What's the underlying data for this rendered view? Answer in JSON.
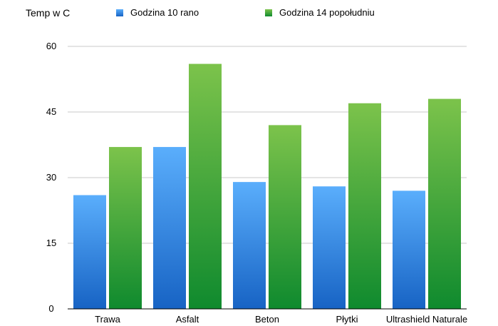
{
  "chart_data": {
    "type": "bar",
    "ylabel": "Temp w C",
    "categories": [
      "Trawa",
      "Asfalt",
      "Beton",
      "Płytki",
      "Ultrashield Naturale"
    ],
    "series": [
      {
        "name": "Godzina 10 rano",
        "values": [
          26,
          37,
          29,
          28,
          27
        ],
        "color_top": "#5aaefc",
        "color_bottom": "#1763c4"
      },
      {
        "name": "Godzina 14 popołudniu",
        "values": [
          37,
          56,
          42,
          47,
          48
        ],
        "color_top": "#7cc34b",
        "color_bottom": "#0f8a2e"
      }
    ],
    "ylim": [
      0,
      60
    ],
    "yticks": [
      0,
      15,
      30,
      45,
      60
    ],
    "grid": true,
    "legend": "top"
  }
}
